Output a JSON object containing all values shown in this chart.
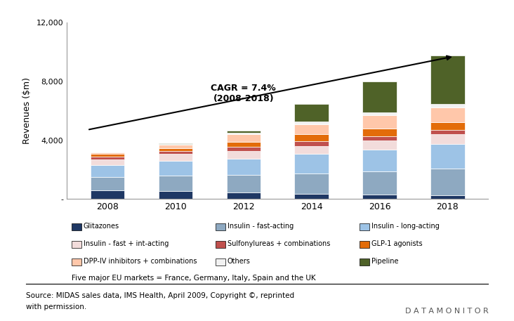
{
  "years": [
    "2008",
    "2010",
    "2012",
    "2014",
    "2016",
    "2018"
  ],
  "segments": [
    {
      "name": "Glitazones",
      "color": "#1F3864",
      "values": [
        600,
        550,
        450,
        350,
        280,
        250
      ]
    },
    {
      "name": "Insulin - fast-acting",
      "color": "#8EA9C1",
      "values": [
        900,
        1050,
        1200,
        1400,
        1600,
        1800
      ]
    },
    {
      "name": "Insulin - long-acting",
      "color": "#9DC3E6",
      "values": [
        800,
        1000,
        1100,
        1300,
        1500,
        1700
      ]
    },
    {
      "name": "Insulin - fast + int-acting",
      "color": "#F2DCDB",
      "values": [
        400,
        450,
        500,
        550,
        600,
        650
      ]
    },
    {
      "name": "Sulfonylureas + combinations",
      "color": "#C0504D",
      "values": [
        200,
        220,
        300,
        350,
        300,
        280
      ]
    },
    {
      "name": "GLP-1 agonists",
      "color": "#E36C09",
      "values": [
        150,
        200,
        350,
        450,
        500,
        550
      ]
    },
    {
      "name": "DPP-IV inhibitors + combinations",
      "color": "#FFC7AA",
      "values": [
        100,
        200,
        500,
        700,
        900,
        1000
      ]
    },
    {
      "name": "Others",
      "color": "#F2F2F2",
      "values": [
        50,
        80,
        100,
        150,
        200,
        220
      ]
    },
    {
      "name": "Pipeline",
      "color": "#4F6228",
      "values": [
        0,
        50,
        150,
        1200,
        2100,
        3300
      ]
    }
  ],
  "ylabel": "Revenues ($m)",
  "ylim": [
    0,
    12000
  ],
  "yticks": [
    0,
    4000,
    8000,
    12000
  ],
  "ytick_labels": [
    "-",
    "4,000",
    "8,000",
    "12,000"
  ],
  "cagr_text": "CAGR = 7.4%\n(2008-2018)",
  "source_text": "Source: MIDAS sales data, IMS Health, April 2009, Copyright ©, reprinted",
  "source_text2": "with permission.",
  "note_text": "Five major EU markets = France, Germany, Italy, Spain and the UK",
  "datamonitor_text": "D A T A M O N I T O R",
  "background_color": "#FFFFFF",
  "plot_bg_color": "#FFFFFF",
  "bar_width": 0.5
}
